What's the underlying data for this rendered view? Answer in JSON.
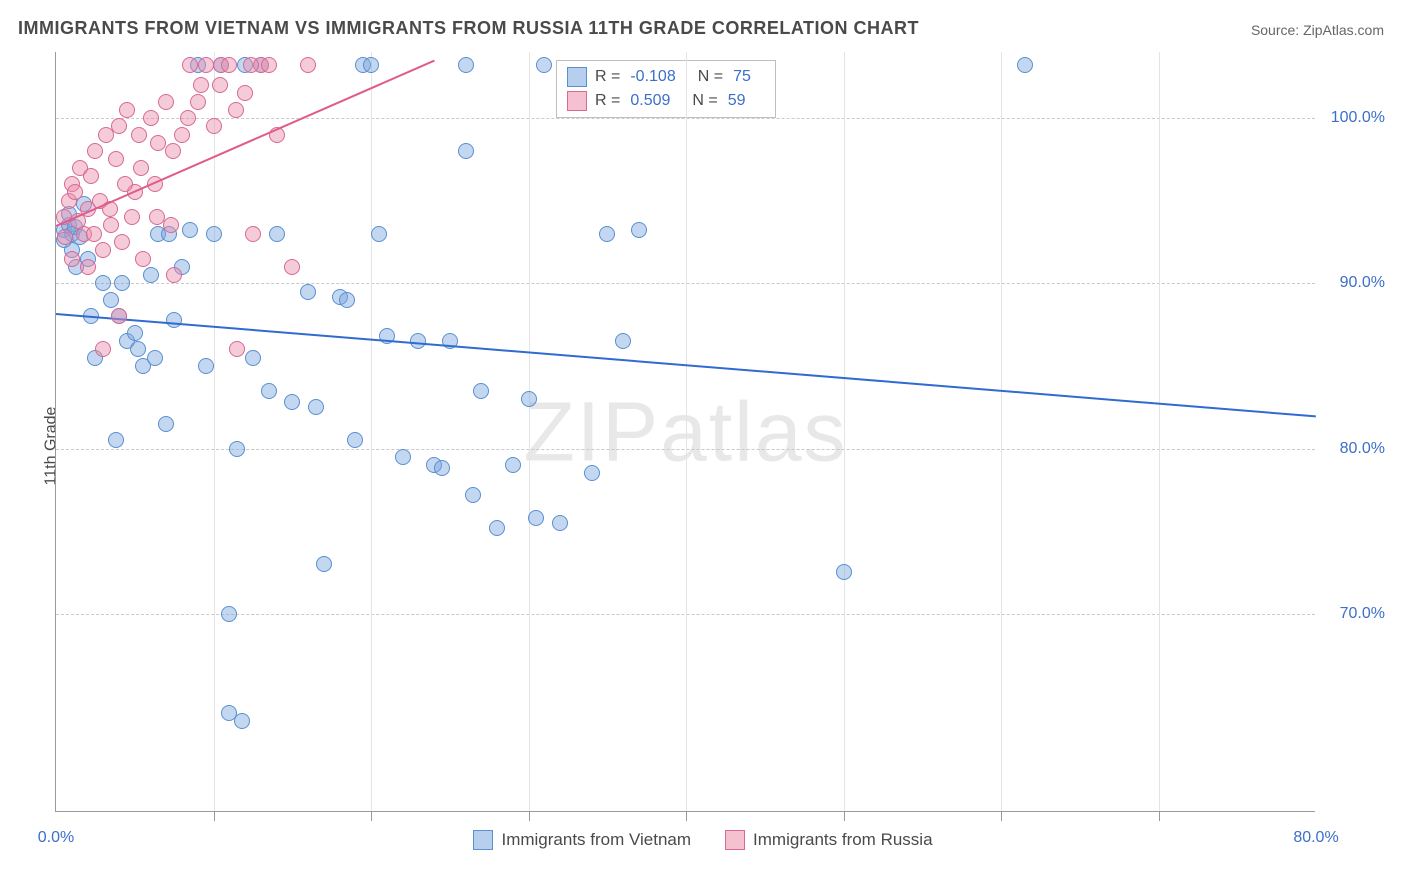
{
  "title": "IMMIGRANTS FROM VIETNAM VS IMMIGRANTS FROM RUSSIA 11TH GRADE CORRELATION CHART",
  "source": "Source: ZipAtlas.com",
  "ylabel": "11th Grade",
  "watermark": "ZIPatlas",
  "chart": {
    "type": "scatter",
    "xlim": [
      0,
      80
    ],
    "ylim": [
      58,
      104
    ],
    "xticks": [
      0,
      80
    ],
    "xtick_minors": [
      10,
      20,
      30,
      40,
      50,
      60,
      70
    ],
    "yticks": [
      70,
      80,
      90,
      100
    ],
    "ytick_labels": [
      "70.0%",
      "80.0%",
      "90.0%",
      "100.0%"
    ],
    "xtick_labels": [
      "0.0%",
      "80.0%"
    ],
    "background_color": "#ffffff",
    "grid_color": "#c9c9c9",
    "marker_radius": 8,
    "series": [
      {
        "name": "Immigrants from Vietnam",
        "fill": "rgba(122,167,224,0.45)",
        "stroke": "#5a8fd0",
        "R": "-0.108",
        "N": "75",
        "trend": {
          "x1": 0,
          "y1": 88.2,
          "x2": 80,
          "y2": 82.0,
          "color": "#2f6bd0",
          "width": 2
        },
        "points": [
          [
            0.5,
            93.2
          ],
          [
            0.8,
            93.5
          ],
          [
            1.0,
            93.0
          ],
          [
            1.2,
            93.4
          ],
          [
            1.5,
            92.8
          ],
          [
            1.8,
            94.8
          ],
          [
            1.0,
            92.0
          ],
          [
            0.5,
            92.6
          ],
          [
            2.0,
            91.5
          ],
          [
            3.0,
            90.0
          ],
          [
            3.5,
            89.0
          ],
          [
            4.0,
            88.0
          ],
          [
            4.5,
            86.5
          ],
          [
            2.5,
            85.5
          ],
          [
            5.0,
            87.0
          ],
          [
            5.5,
            85.0
          ],
          [
            6.0,
            90.5
          ],
          [
            6.5,
            93.0
          ],
          [
            7.0,
            81.5
          ],
          [
            7.5,
            87.8
          ],
          [
            8.0,
            91.0
          ],
          [
            8.5,
            93.2
          ],
          [
            9.0,
            103.2
          ],
          [
            9.5,
            85.0
          ],
          [
            10.0,
            93.0
          ],
          [
            10.5,
            103.2
          ],
          [
            11.0,
            70.0
          ],
          [
            11.5,
            80.0
          ],
          [
            12.0,
            103.2
          ],
          [
            12.5,
            85.5
          ],
          [
            13.0,
            103.2
          ],
          [
            11.0,
            64.0
          ],
          [
            11.8,
            63.5
          ],
          [
            13.5,
            83.5
          ],
          [
            14.0,
            93.0
          ],
          [
            15.0,
            82.8
          ],
          [
            16.0,
            89.5
          ],
          [
            16.5,
            82.5
          ],
          [
            17.0,
            73.0
          ],
          [
            18.0,
            89.2
          ],
          [
            18.5,
            89.0
          ],
          [
            19.0,
            80.5
          ],
          [
            19.5,
            103.2
          ],
          [
            20.0,
            103.2
          ],
          [
            20.5,
            93.0
          ],
          [
            21.0,
            86.8
          ],
          [
            22.0,
            79.5
          ],
          [
            23.0,
            86.5
          ],
          [
            24.0,
            79.0
          ],
          [
            24.5,
            78.8
          ],
          [
            25.0,
            86.5
          ],
          [
            26.0,
            103.2
          ],
          [
            26.5,
            77.2
          ],
          [
            27.0,
            83.5
          ],
          [
            28.0,
            75.2
          ],
          [
            29.0,
            79.0
          ],
          [
            30.0,
            83.0
          ],
          [
            30.5,
            75.8
          ],
          [
            31.0,
            103.2
          ],
          [
            32.0,
            75.5
          ],
          [
            34.0,
            78.5
          ],
          [
            35.0,
            93.0
          ],
          [
            36.0,
            86.5
          ],
          [
            37.0,
            93.2
          ],
          [
            26.0,
            98.0
          ],
          [
            50.0,
            72.5
          ],
          [
            61.5,
            103.2
          ],
          [
            0.8,
            94.2
          ],
          [
            1.3,
            91.0
          ],
          [
            2.2,
            88.0
          ],
          [
            3.8,
            80.5
          ],
          [
            4.2,
            90.0
          ],
          [
            5.2,
            86.0
          ],
          [
            6.3,
            85.5
          ],
          [
            7.2,
            93.0
          ]
        ]
      },
      {
        "name": "Immigrants from Russia",
        "fill": "rgba(236,140,170,0.45)",
        "stroke": "#d76a92",
        "R": "0.509",
        "N": "59",
        "trend": {
          "x1": 0,
          "y1": 93.5,
          "x2": 24,
          "y2": 103.5,
          "color": "#e05a8a",
          "width": 2
        },
        "points": [
          [
            0.5,
            94.0
          ],
          [
            0.8,
            95.0
          ],
          [
            1.0,
            96.0
          ],
          [
            1.2,
            95.5
          ],
          [
            1.5,
            97.0
          ],
          [
            1.8,
            93.0
          ],
          [
            2.0,
            94.5
          ],
          [
            2.2,
            96.5
          ],
          [
            2.5,
            98.0
          ],
          [
            2.8,
            95.0
          ],
          [
            3.0,
            92.0
          ],
          [
            3.2,
            99.0
          ],
          [
            3.5,
            93.5
          ],
          [
            3.8,
            97.5
          ],
          [
            4.0,
            99.5
          ],
          [
            4.2,
            92.5
          ],
          [
            4.5,
            100.5
          ],
          [
            4.8,
            94.0
          ],
          [
            5.0,
            95.5
          ],
          [
            5.3,
            99.0
          ],
          [
            5.5,
            91.5
          ],
          [
            6.0,
            100.0
          ],
          [
            6.3,
            96.0
          ],
          [
            6.5,
            98.5
          ],
          [
            7.0,
            101.0
          ],
          [
            7.3,
            93.5
          ],
          [
            7.5,
            90.5
          ],
          [
            8.0,
            99.0
          ],
          [
            8.5,
            103.2
          ],
          [
            9.0,
            101.0
          ],
          [
            9.5,
            103.2
          ],
          [
            10.0,
            99.5
          ],
          [
            10.5,
            103.2
          ],
          [
            11.0,
            103.2
          ],
          [
            11.5,
            86.0
          ],
          [
            12.0,
            101.5
          ],
          [
            12.5,
            93.0
          ],
          [
            13.0,
            103.2
          ],
          [
            13.5,
            103.2
          ],
          [
            14.0,
            99.0
          ],
          [
            15.0,
            91.0
          ],
          [
            16.0,
            103.2
          ],
          [
            9.2,
            102.0
          ],
          [
            3.0,
            86.0
          ],
          [
            4.0,
            88.0
          ],
          [
            2.0,
            91.0
          ],
          [
            1.0,
            91.5
          ],
          [
            0.6,
            92.8
          ],
          [
            1.4,
            93.8
          ],
          [
            2.4,
            93.0
          ],
          [
            3.4,
            94.5
          ],
          [
            4.4,
            96.0
          ],
          [
            5.4,
            97.0
          ],
          [
            6.4,
            94.0
          ],
          [
            7.4,
            98.0
          ],
          [
            8.4,
            100.0
          ],
          [
            10.4,
            102.0
          ],
          [
            11.4,
            100.5
          ],
          [
            12.4,
            103.2
          ]
        ]
      }
    ]
  },
  "legend_swatches": [
    {
      "fill": "rgba(122,167,224,0.55)",
      "stroke": "#5a8fd0"
    },
    {
      "fill": "rgba(236,140,170,0.55)",
      "stroke": "#d76a92"
    }
  ]
}
